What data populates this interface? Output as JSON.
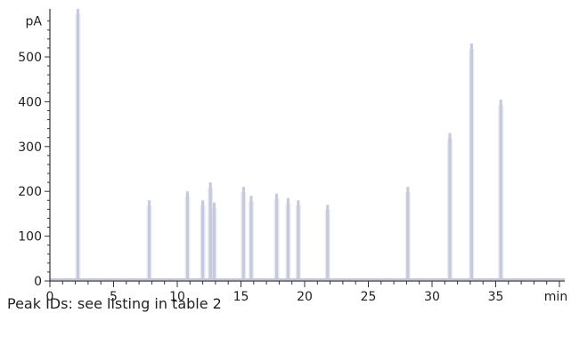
{
  "chart_data": {
    "type": "line",
    "title": "",
    "xlabel": "",
    "ylabel": "",
    "y_unit": "pA",
    "x_unit": "min",
    "xlim": [
      0,
      40
    ],
    "ylim": [
      0,
      600
    ],
    "x_ticks": [
      0,
      5,
      10,
      15,
      20,
      25,
      30,
      35
    ],
    "y_ticks": [
      0,
      100,
      200,
      300,
      400,
      500
    ],
    "grid": false,
    "line_color": "#c4c6da",
    "series": [
      {
        "peaks": [
          {
            "t": 2.2,
            "height": 610
          },
          {
            "t": 7.8,
            "height": 180
          },
          {
            "t": 10.8,
            "height": 200
          },
          {
            "t": 12.0,
            "height": 180
          },
          {
            "t": 12.6,
            "height": 220
          },
          {
            "t": 12.9,
            "height": 175
          },
          {
            "t": 15.2,
            "height": 210
          },
          {
            "t": 15.8,
            "height": 190
          },
          {
            "t": 17.8,
            "height": 195
          },
          {
            "t": 18.7,
            "height": 185
          },
          {
            "t": 19.5,
            "height": 180
          },
          {
            "t": 21.8,
            "height": 170
          },
          {
            "t": 28.1,
            "height": 210
          },
          {
            "t": 31.4,
            "height": 330
          },
          {
            "t": 33.1,
            "height": 530
          },
          {
            "t": 35.4,
            "height": 405
          }
        ]
      }
    ]
  },
  "caption": "Peak IDs: see listing in table 2"
}
